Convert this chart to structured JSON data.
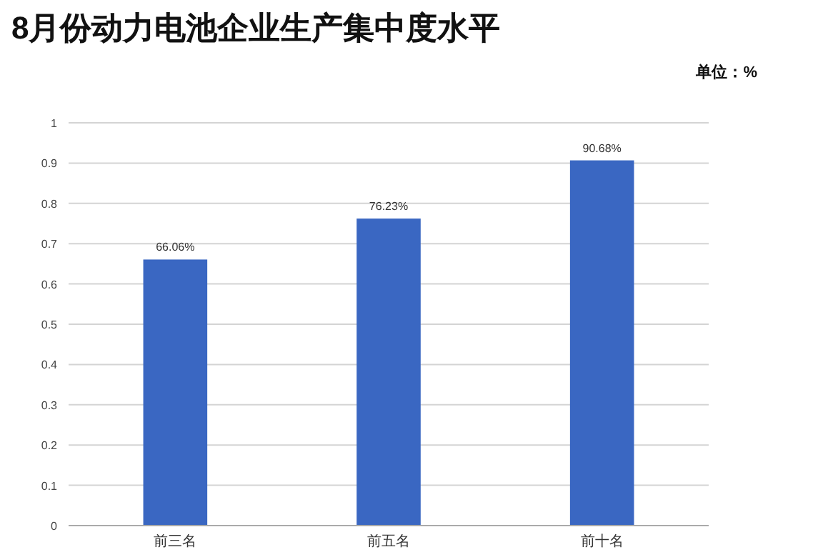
{
  "chart_data": {
    "type": "bar",
    "title": "8月份动力电池企业生产集中度水平",
    "annotations": [
      "单位：%"
    ],
    "categories": [
      "前三名",
      "前五名",
      "前十名"
    ],
    "values": [
      0.6606,
      0.7623,
      0.9068
    ],
    "value_labels": [
      "66.06%",
      "76.23%",
      "90.68%"
    ],
    "color": "#3a67c2",
    "ylim": [
      0,
      1
    ],
    "yticks": [
      0,
      {
        "value": 0.1,
        "label": "0.1"
      },
      {
        "value": 0.2,
        "label": "0.2"
      },
      {
        "value": 0.3,
        "label": "0.3"
      },
      {
        "value": 0.4,
        "label": "0.4"
      },
      {
        "value": 0.5,
        "label": "0.5"
      },
      {
        "value": 0.6,
        "label": "0.6"
      },
      {
        "value": 0.7,
        "label": "0.7"
      },
      {
        "value": 0.8,
        "label": "0.8"
      },
      {
        "value": 0.9,
        "label": "0.9"
      },
      1
    ],
    "grid": "y"
  }
}
